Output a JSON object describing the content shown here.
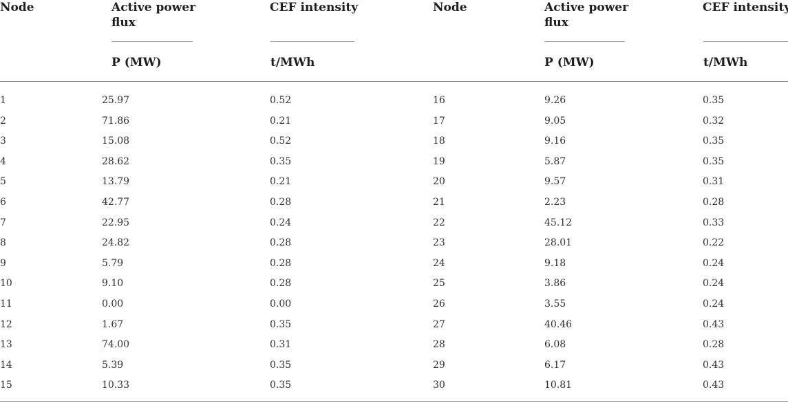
{
  "headers": {
    "node": "Node",
    "active_power_flux": "Active power flux",
    "cef_intensity": "CEF intensity"
  },
  "units": {
    "power": "P (MW)",
    "cef": "t/MWh"
  },
  "rows": [
    {
      "left": [
        "1",
        "25.97",
        "0.52"
      ],
      "right": [
        "16",
        "9.26",
        "0.35"
      ]
    },
    {
      "left": [
        "2",
        "71.86",
        "0.21"
      ],
      "right": [
        "17",
        "9.05",
        "0.32"
      ]
    },
    {
      "left": [
        "3",
        "15.08",
        "0.52"
      ],
      "right": [
        "18",
        "9.16",
        "0.35"
      ]
    },
    {
      "left": [
        "4",
        "28.62",
        "0.35"
      ],
      "right": [
        "19",
        "5.87",
        "0.35"
      ]
    },
    {
      "left": [
        "5",
        "13.79",
        "0.21"
      ],
      "right": [
        "20",
        "9.57",
        "0.31"
      ]
    },
    {
      "left": [
        "6",
        "42.77",
        "0.28"
      ],
      "right": [
        "21",
        "2.23",
        "0.28"
      ]
    },
    {
      "left": [
        "7",
        "22.95",
        "0.24"
      ],
      "right": [
        "22",
        "45.12",
        "0.33"
      ]
    },
    {
      "left": [
        "8",
        "24.82",
        "0.28"
      ],
      "right": [
        "23",
        "28.01",
        "0.22"
      ]
    },
    {
      "left": [
        "9",
        "5.79",
        "0.28"
      ],
      "right": [
        "24",
        "9.18",
        "0.24"
      ]
    },
    {
      "left": [
        "10",
        "9.10",
        "0.28"
      ],
      "right": [
        "25",
        "3.86",
        "0.24"
      ]
    },
    {
      "left": [
        "11",
        "0.00",
        "0.00"
      ],
      "right": [
        "26",
        "3.55",
        "0.24"
      ]
    },
    {
      "left": [
        "12",
        "1.67",
        "0.35"
      ],
      "right": [
        "27",
        "40.46",
        "0.43"
      ]
    },
    {
      "left": [
        "13",
        "74.00",
        "0.31"
      ],
      "right": [
        "28",
        "6.08",
        "0.28"
      ]
    },
    {
      "left": [
        "14",
        "5.39",
        "0.35"
      ],
      "right": [
        "29",
        "6.17",
        "0.43"
      ]
    },
    {
      "left": [
        "15",
        "10.33",
        "0.35"
      ],
      "right": [
        "30",
        "10.81",
        "0.43"
      ]
    }
  ]
}
